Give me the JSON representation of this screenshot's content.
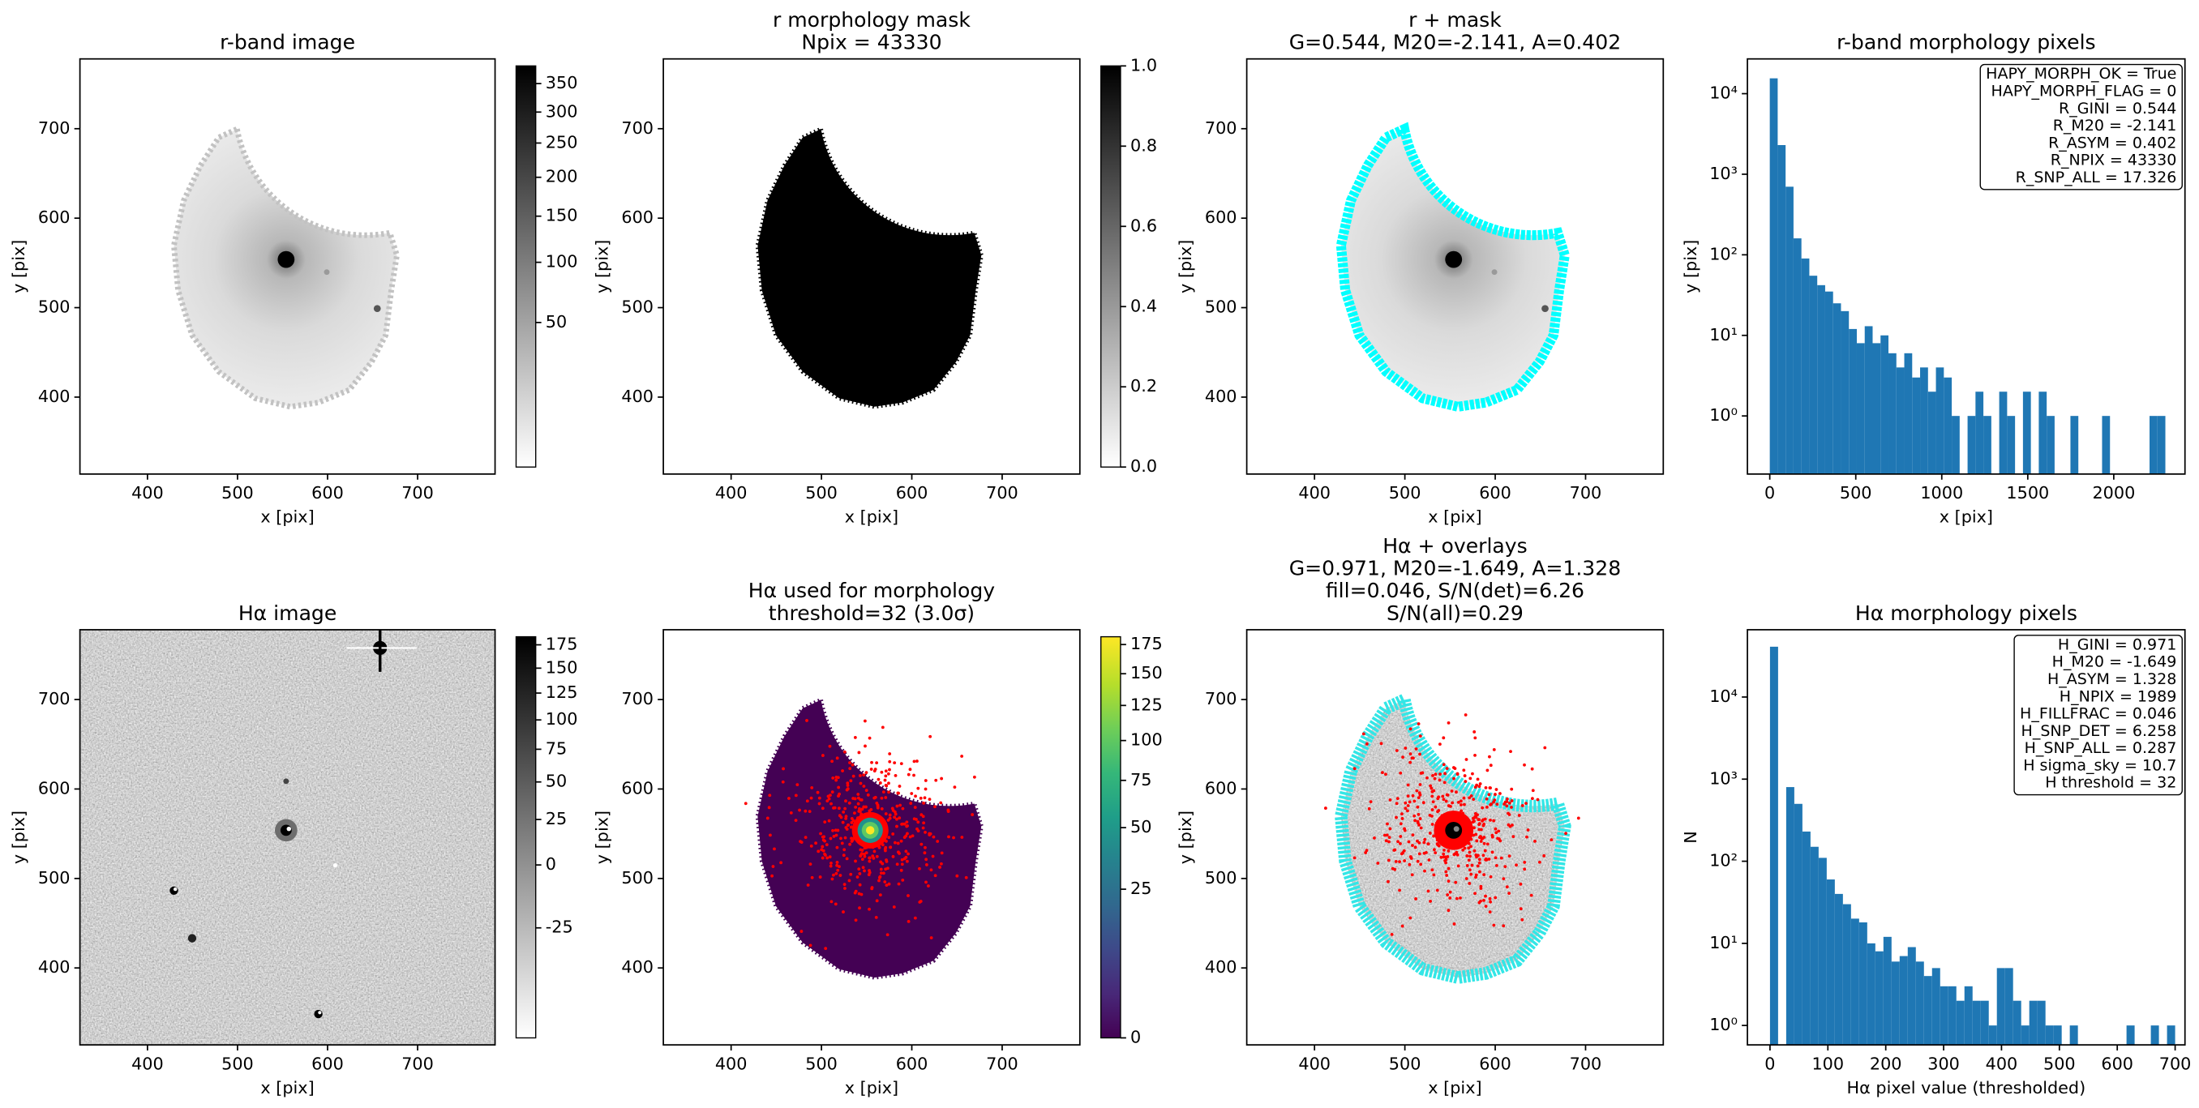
{
  "chart_data": [
    {
      "type": "image",
      "title": [
        "r-band image"
      ],
      "xlabel": "x [pix]",
      "ylabel": "y [pix]",
      "xlim": [
        325,
        786
      ],
      "ylim": [
        314,
        778
      ],
      "xticks": [
        400,
        500,
        600,
        700
      ],
      "yticks": [
        400,
        500,
        600,
        700
      ],
      "colorbar": {
        "clim": [
          0.3,
          383
        ],
        "scale": "sqrt",
        "cmap": "gray_r",
        "ticks": [
          50,
          100,
          150,
          200,
          250,
          300,
          350
        ]
      }
    },
    {
      "type": "image",
      "title": [
        "r morphology mask",
        "Npix = 43330"
      ],
      "xlabel": "x [pix]",
      "ylabel": "y [pix]",
      "xlim": [
        325,
        786
      ],
      "ylim": [
        314,
        778
      ],
      "xticks": [
        400,
        500,
        600,
        700
      ],
      "yticks": [
        400,
        500,
        600,
        700
      ],
      "colorbar": {
        "clim": [
          0,
          1
        ],
        "scale": "linear",
        "cmap": "gray_r",
        "ticks": [
          {
            "value": 0,
            "label": "0.0"
          },
          0.2,
          0.4,
          0.6,
          0.8,
          {
            "value": 1,
            "label": "1.0"
          }
        ]
      }
    },
    {
      "type": "image",
      "title": [
        "r + mask",
        "G=0.544, M20=-2.141, A=0.402"
      ],
      "xlabel": "x [pix]",
      "ylabel": "y [pix]",
      "xlim": [
        325,
        786
      ],
      "ylim": [
        314,
        778
      ],
      "xticks": [
        400,
        500,
        600,
        700
      ],
      "yticks": [
        400,
        500,
        600,
        700
      ]
    },
    {
      "type": "histogram",
      "title": [
        "r-band morphology pixels"
      ],
      "xlabel": "x [pix]",
      "ylabel": "y [pix]",
      "color": "#1f77b4",
      "bins": [
        0,
        46,
        92,
        138,
        184,
        230,
        276,
        322,
        368,
        414,
        460,
        506,
        552,
        598,
        644,
        690,
        736,
        782,
        828,
        874,
        920,
        966,
        1012,
        1058,
        1104,
        1150,
        1196,
        1242,
        1288,
        1334,
        1380,
        1426,
        1472,
        1518,
        1564,
        1610,
        1656,
        1702,
        1748,
        1794,
        1840,
        1886,
        1932,
        1978,
        2024,
        2070,
        2116,
        2162,
        2208,
        2254,
        2300
      ],
      "values": [
        15500,
        2300,
        700,
        160,
        90,
        55,
        42,
        35,
        25,
        20,
        12,
        8,
        13,
        8,
        10,
        6,
        4,
        6,
        3,
        4,
        2,
        4,
        3,
        1,
        0,
        1,
        2,
        1,
        0,
        2,
        1,
        0,
        2,
        0,
        2,
        1,
        0,
        0,
        1,
        0,
        0,
        0,
        1,
        0,
        0,
        0,
        0,
        0,
        1,
        1
      ],
      "xlim": [
        -130,
        2414
      ],
      "ylim": [
        0.19,
        27000
      ],
      "yscale": "log",
      "xticks": [
        0,
        500,
        1000,
        1500,
        2000
      ],
      "yticks": [
        {
          "value": 1,
          "label": "10⁰"
        },
        {
          "value": 10,
          "label": "10¹"
        },
        {
          "value": 100,
          "label": "10²"
        },
        {
          "value": 1000,
          "label": "10³"
        },
        {
          "value": 10000,
          "label": "10⁴"
        }
      ],
      "annotation": [
        "HAPY_MORPH_OK = True",
        "HAPY_MORPH_FLAG = 0",
        "R_GINI = 0.544",
        "R_M20 = -2.141",
        "R_ASYM = 0.402",
        "R_NPIX = 43330",
        "R_SNP_ALL = 17.326"
      ]
    },
    {
      "type": "image",
      "title": [
        "Hα image"
      ],
      "xlabel": "x [pix]",
      "ylabel": "y [pix]",
      "xlim": [
        325,
        786
      ],
      "ylim": [
        314,
        778
      ],
      "xticks": [
        400,
        500,
        600,
        700
      ],
      "yticks": [
        400,
        500,
        600,
        700
      ],
      "colorbar": {
        "clim": [
          -42,
          184
        ],
        "scale": "sqrt",
        "cmap": "gray_r",
        "ticks": [
          -25,
          0,
          25,
          50,
          75,
          100,
          125,
          150,
          175
        ]
      }
    },
    {
      "type": "image",
      "title": [
        "Hα used for morphology",
        "threshold=32 (3.0σ)"
      ],
      "xlabel": "x [pix]",
      "ylabel": "y [pix]",
      "xlim": [
        325,
        786
      ],
      "ylim": [
        314,
        778
      ],
      "xticks": [
        400,
        500,
        600,
        700
      ],
      "yticks": [
        400,
        500,
        600,
        700
      ],
      "colorbar": {
        "clim": [
          0,
          182
        ],
        "scale": "sqrt",
        "cmap": "viridis",
        "ticks": [
          0,
          25,
          50,
          75,
          100,
          125,
          150,
          175
        ]
      }
    },
    {
      "type": "image",
      "title": [
        "Hα + overlays",
        "G=0.971, M20=-1.649, A=1.328",
        "fill=0.046, S/N(det)=6.26",
        "S/N(all)=0.29"
      ],
      "xlabel": "x [pix]",
      "ylabel": "y [pix]",
      "xlim": [
        325,
        786
      ],
      "ylim": [
        314,
        778
      ],
      "xticks": [
        400,
        500,
        600,
        700
      ],
      "yticks": [
        400,
        500,
        600,
        700
      ]
    },
    {
      "type": "histogram",
      "title": [
        "Hα morphology pixels"
      ],
      "xlabel": "Hα pixel value (thresholded)",
      "ylabel": "N",
      "color": "#1f77b4",
      "bins": [
        0,
        14,
        28,
        42,
        56,
        70,
        84,
        98,
        112,
        126,
        140,
        154,
        168,
        182,
        196,
        210,
        224,
        238,
        252,
        266,
        280,
        294,
        308,
        322,
        336,
        350,
        364,
        378,
        392,
        406,
        420,
        434,
        448,
        462,
        476,
        490,
        504,
        518,
        532,
        546,
        560,
        574,
        588,
        602,
        616,
        630,
        644,
        658,
        672,
        686,
        700
      ],
      "values": [
        41000,
        0,
        800,
        500,
        230,
        150,
        110,
        60,
        40,
        30,
        20,
        18,
        10,
        8,
        12,
        6,
        7,
        9,
        6,
        4,
        5,
        3,
        3,
        2,
        3,
        2,
        2,
        1,
        5,
        5,
        2,
        1,
        2,
        2,
        1,
        1,
        0,
        1,
        0,
        0,
        0,
        0,
        0,
        0,
        1,
        0,
        0,
        1,
        0,
        1
      ],
      "xlim": [
        -39,
        717
      ],
      "ylim": [
        0.58,
        66000
      ],
      "yscale": "log",
      "xticks": [
        0,
        100,
        200,
        300,
        400,
        500,
        600,
        700
      ],
      "yticks": [
        {
          "value": 1,
          "label": "10⁰"
        },
        {
          "value": 10,
          "label": "10¹"
        },
        {
          "value": 100,
          "label": "10²"
        },
        {
          "value": 1000,
          "label": "10³"
        },
        {
          "value": 10000,
          "label": "10⁴"
        }
      ],
      "annotation": [
        "H_GINI = 0.971",
        "H_M20 = -1.649",
        "H_ASYM = 1.328",
        "H_NPIX = 1989",
        "H_FILLFRAC = 0.046",
        "H_SNP_DET = 6.258",
        "H_SNP_ALL = 0.287",
        "H sigma_sky = 10.7",
        "H threshold = 32"
      ]
    }
  ]
}
